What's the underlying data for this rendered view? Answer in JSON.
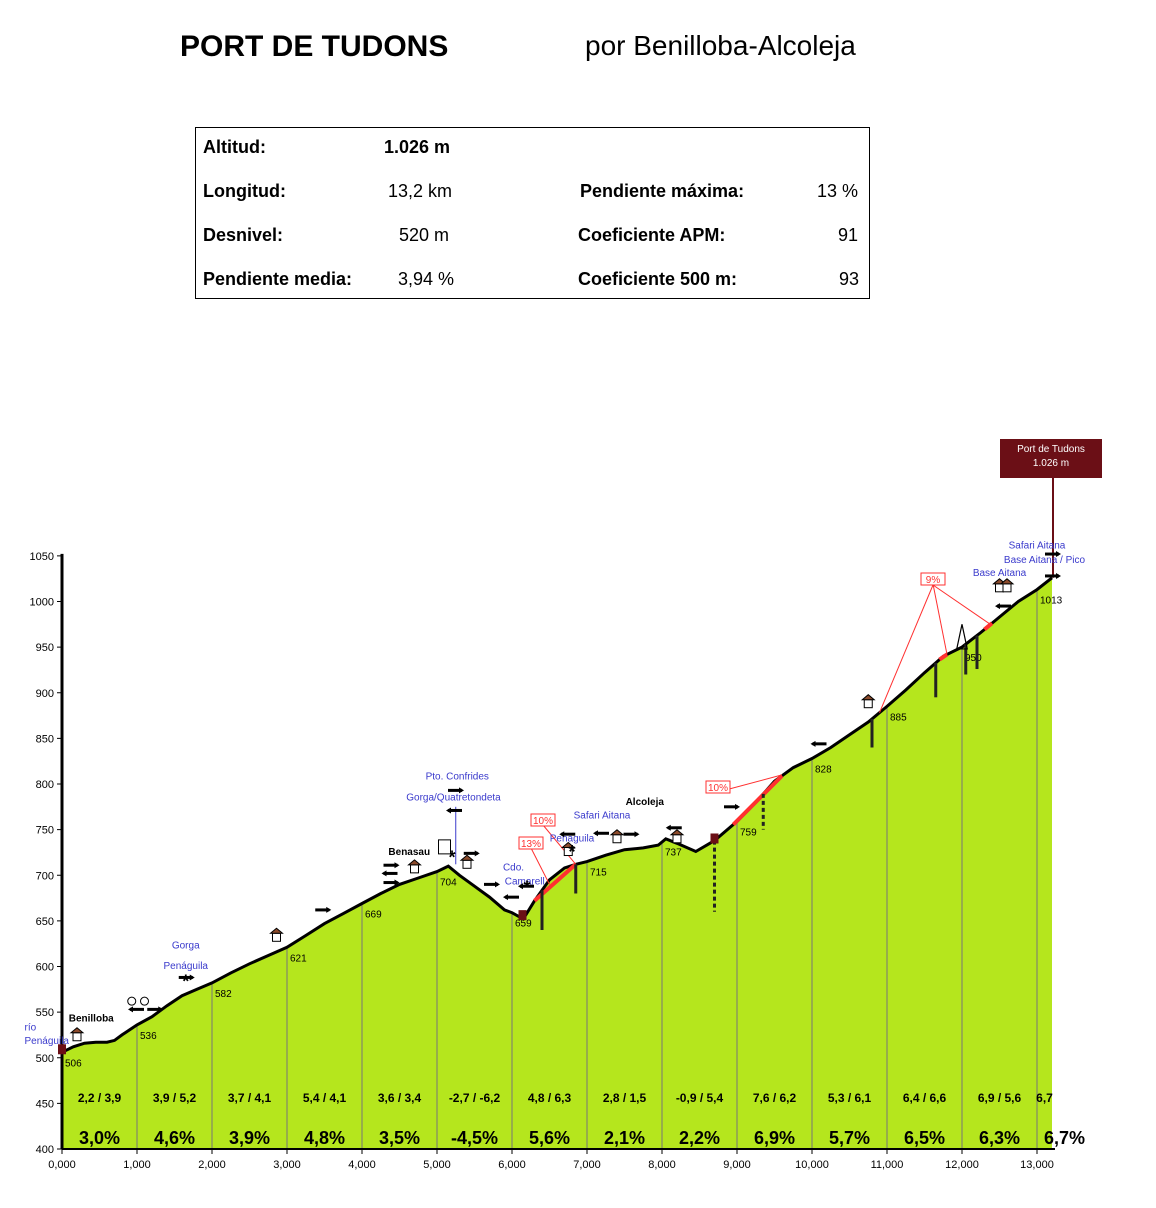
{
  "header": {
    "title": "PORT DE TUDONS",
    "subtitle": "por Benilloba-Alcoleja"
  },
  "stats": {
    "altitud_label": "Altitud:",
    "altitud_value": "1.026 m",
    "longitud_label": "Longitud:",
    "longitud_value": "13,2 km",
    "desnivel_label": "Desnivel:",
    "desnivel_value": "520 m",
    "pendiente_media_label": "Pendiente media:",
    "pendiente_media_value": "3,94 %",
    "pendiente_maxima_label": "Pendiente máxima:",
    "pendiente_maxima_value": "13 %",
    "coef_apm_label": "Coeficiente APM:",
    "coef_apm_value": "91",
    "coef_500_label": "Coeficiente 500 m:",
    "coef_500_value": "93"
  },
  "summit_box": {
    "line1": "Port de Tudons",
    "line2": "1.026 m",
    "color": "#6b0f16"
  },
  "colors": {
    "fill": "#b5e61d",
    "profile": "#000000",
    "steep": "#ff3030",
    "place": "#3a3acc"
  },
  "chart_data": {
    "type": "area",
    "xlabel": "",
    "ylabel": "",
    "xlim": [
      0,
      13200
    ],
    "ylim": [
      400,
      1050
    ],
    "x_ticks": [
      "0,000",
      "1,000",
      "2,000",
      "3,000",
      "4,000",
      "5,000",
      "6,000",
      "7,000",
      "8,000",
      "9,000",
      "10,000",
      "11,000",
      "12,000",
      "13,000"
    ],
    "y_ticks": [
      "400",
      "450",
      "500",
      "550",
      "600",
      "650",
      "700",
      "750",
      "800",
      "850",
      "900",
      "950",
      "1000",
      "1050"
    ],
    "profile": {
      "x": [
        0,
        150,
        300,
        450,
        600,
        700,
        800,
        1000,
        1200,
        1400,
        1600,
        1800,
        2000,
        2250,
        2500,
        2750,
        3000,
        3250,
        3500,
        3750,
        4000,
        4250,
        4500,
        4750,
        5000,
        5150,
        5300,
        5500,
        5700,
        5900,
        6000,
        6150,
        6300,
        6500,
        6700,
        6850,
        7000,
        7250,
        7500,
        7750,
        7950,
        8050,
        8200,
        8450,
        8700,
        9000,
        9250,
        9500,
        9750,
        10000,
        10250,
        10500,
        10750,
        11000,
        11250,
        11500,
        11750,
        12000,
        12250,
        12500,
        12750,
        13000,
        13200
      ],
      "y": [
        506,
        512,
        516,
        517,
        517,
        519,
        525,
        536,
        545,
        557,
        568,
        575,
        582,
        593,
        603,
        612,
        621,
        634,
        647,
        658,
        669,
        680,
        690,
        697,
        704,
        710,
        700,
        688,
        676,
        662,
        659,
        652,
        672,
        695,
        708,
        712,
        715,
        722,
        728,
        730,
        733,
        740,
        735,
        726,
        738,
        759,
        780,
        803,
        818,
        828,
        840,
        854,
        868,
        885,
        903,
        922,
        940,
        950,
        966,
        983,
        1000,
        1013,
        1026
      ]
    },
    "point_labels": [
      {
        "x": 0,
        "y": 506,
        "text": "506"
      },
      {
        "x": 1000,
        "y": 536,
        "text": "536"
      },
      {
        "x": 2000,
        "y": 582,
        "text": "582"
      },
      {
        "x": 3000,
        "y": 621,
        "text": "621"
      },
      {
        "x": 4000,
        "y": 669,
        "text": "669"
      },
      {
        "x": 5000,
        "y": 704,
        "text": "704"
      },
      {
        "x": 6000,
        "y": 659,
        "text": "659"
      },
      {
        "x": 7000,
        "y": 715,
        "text": "715"
      },
      {
        "x": 8000,
        "y": 737,
        "text": "737"
      },
      {
        "x": 9000,
        "y": 759,
        "text": "759"
      },
      {
        "x": 10000,
        "y": 828,
        "text": "828"
      },
      {
        "x": 11000,
        "y": 885,
        "text": "885"
      },
      {
        "x": 12000,
        "y": 950,
        "text": "950"
      },
      {
        "x": 13000,
        "y": 1013,
        "text": "1013"
      }
    ],
    "segments": [
      {
        "start": 0,
        "end": 1000,
        "detail": "2,2 / 3,9",
        "avg": "3,0%"
      },
      {
        "start": 1000,
        "end": 2000,
        "detail": "3,9 / 5,2",
        "avg": "4,6%"
      },
      {
        "start": 2000,
        "end": 3000,
        "detail": "3,7 / 4,1",
        "avg": "3,9%"
      },
      {
        "start": 3000,
        "end": 4000,
        "detail": "5,4 / 4,1",
        "avg": "4,8%"
      },
      {
        "start": 4000,
        "end": 5000,
        "detail": "3,6 / 3,4",
        "avg": "3,5%"
      },
      {
        "start": 5000,
        "end": 6000,
        "detail": "-2,7 / -6,2",
        "avg": "-4,5%"
      },
      {
        "start": 6000,
        "end": 7000,
        "detail": "4,8 / 6,3",
        "avg": "5,6%"
      },
      {
        "start": 7000,
        "end": 8000,
        "detail": "2,8 / 1,5",
        "avg": "2,1%"
      },
      {
        "start": 8000,
        "end": 9000,
        "detail": "-0,9 / 5,4",
        "avg": "2,2%"
      },
      {
        "start": 9000,
        "end": 10000,
        "detail": "7,6 / 6,2",
        "avg": "6,9%"
      },
      {
        "start": 10000,
        "end": 11000,
        "detail": "5,3 / 6,1",
        "avg": "5,7%"
      },
      {
        "start": 11000,
        "end": 12000,
        "detail": "6,4 / 6,6",
        "avg": "6,5%"
      },
      {
        "start": 12000,
        "end": 13000,
        "detail": "6,9 / 5,6",
        "avg": "6,3%"
      },
      {
        "start": 13000,
        "end": 13200,
        "detail": "6,7",
        "avg": "6,7%"
      }
    ],
    "max_grade_labels": [
      {
        "text": "13%",
        "anchor_x": 6500,
        "anchor_y": 690
      },
      {
        "text": "10%",
        "anchor_x": 6850,
        "anchor_y": 712
      },
      {
        "text": "10%",
        "anchor_x": 9600,
        "anchor_y": 810
      },
      {
        "text": "9%",
        "anchor_x": 11800,
        "anchor_y": 942
      }
    ],
    "places": [
      {
        "text": "río",
        "x": -500,
        "y": 530,
        "anchor": "start",
        "style": "blue"
      },
      {
        "text": "Penáguila",
        "x": -500,
        "y": 515,
        "anchor": "start",
        "style": "blue"
      },
      {
        "text": "Benilloba",
        "x": 390,
        "y": 540,
        "anchor": "middle",
        "style": "bold"
      },
      {
        "text": "Gorga",
        "x": 1650,
        "y": 620,
        "anchor": "middle",
        "style": "blue"
      },
      {
        "text": "Penáguila",
        "x": 1650,
        "y": 597,
        "anchor": "middle",
        "style": "blue"
      },
      {
        "text": "Benasau",
        "x": 4630,
        "y": 722,
        "anchor": "middle",
        "style": "bold"
      },
      {
        "text": "Pto. Confrides",
        "x": 5270,
        "y": 805,
        "anchor": "middle",
        "style": "blue"
      },
      {
        "text": "Gorga/Quatretondeta",
        "x": 5220,
        "y": 782,
        "anchor": "middle",
        "style": "blue"
      },
      {
        "text": "Cdo.",
        "x": 6020,
        "y": 705,
        "anchor": "middle",
        "style": "blue"
      },
      {
        "text": "Camarell",
        "x": 6170,
        "y": 690,
        "anchor": "middle",
        "style": "blue"
      },
      {
        "text": "Penáguila",
        "x": 6800,
        "y": 737,
        "anchor": "middle",
        "style": "blue"
      },
      {
        "text": "Safari Aitana",
        "x": 7200,
        "y": 762,
        "anchor": "middle",
        "style": "blue"
      },
      {
        "text": "Alcoleja",
        "x": 7770,
        "y": 777,
        "anchor": "middle",
        "style": "bold"
      },
      {
        "text": "Base Aitana",
        "x": 12500,
        "y": 1028,
        "anchor": "middle",
        "style": "blue"
      },
      {
        "text": "Base Aitana / Pico",
        "x": 13100,
        "y": 1042,
        "anchor": "middle",
        "style": "blue"
      },
      {
        "text": "Safari Aitana",
        "x": 13000,
        "y": 1058,
        "anchor": "middle",
        "style": "blue"
      }
    ],
    "arrows": [
      {
        "x": 1000,
        "y": 553,
        "dir": "left"
      },
      {
        "x": 1230,
        "y": 553,
        "dir": "right"
      },
      {
        "x": 1650,
        "y": 588,
        "dir": "right"
      },
      {
        "x": 3470,
        "y": 662,
        "dir": "right"
      },
      {
        "x": 4380,
        "y": 711,
        "dir": "right"
      },
      {
        "x": 4380,
        "y": 702,
        "dir": "left"
      },
      {
        "x": 4380,
        "y": 692,
        "dir": "right"
      },
      {
        "x": 5240,
        "y": 793,
        "dir": "right"
      },
      {
        "x": 5240,
        "y": 771,
        "dir": "left"
      },
      {
        "x": 5450,
        "y": 724,
        "dir": "right"
      },
      {
        "x": 5720,
        "y": 690,
        "dir": "right"
      },
      {
        "x": 6000,
        "y": 676,
        "dir": "left"
      },
      {
        "x": 6200,
        "y": 688,
        "dir": "left"
      },
      {
        "x": 6750,
        "y": 745,
        "dir": "left"
      },
      {
        "x": 7200,
        "y": 746,
        "dir": "left"
      },
      {
        "x": 7580,
        "y": 745,
        "dir": "right"
      },
      {
        "x": 8170,
        "y": 752,
        "dir": "left"
      },
      {
        "x": 8920,
        "y": 775,
        "dir": "right"
      },
      {
        "x": 10100,
        "y": 844,
        "dir": "left"
      },
      {
        "x": 12560,
        "y": 995,
        "dir": "left"
      },
      {
        "x": 13200,
        "y": 1028,
        "dir": "right"
      },
      {
        "x": 13200,
        "y": 1052,
        "dir": "right"
      }
    ]
  }
}
